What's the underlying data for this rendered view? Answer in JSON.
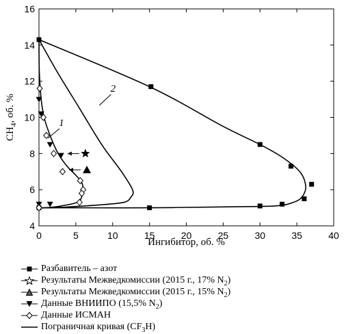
{
  "chart_data": {
    "type": "scatter",
    "xlabel": "Ингибитор, об. %",
    "ylabel_main": "CH",
    "ylabel_sub": "4",
    "ylabel_tail": ", об. %",
    "xlim": [
      0,
      40
    ],
    "ylim": [
      4,
      16
    ],
    "x_ticks": [
      "0",
      "5",
      "10",
      "15",
      "20",
      "25",
      "30",
      "35",
      "40"
    ],
    "y_ticks": [
      "4",
      "6",
      "8",
      "10",
      "12",
      "14",
      "16"
    ],
    "curve_labels": [
      {
        "text": "1",
        "x": 1.2,
        "y": 9.45
      },
      {
        "text": "2",
        "x": 8.2,
        "y": 11.35
      }
    ],
    "series": [
      {
        "name": "Разбавитель – азот",
        "marker": "square",
        "x": [
          0,
          15.2,
          30,
          34.2,
          37,
          36,
          33,
          30,
          15,
          0
        ],
        "y": [
          14.3,
          11.7,
          8.5,
          7.3,
          6.3,
          5.5,
          5.2,
          5.1,
          5.0,
          5.0
        ]
      },
      {
        "name_pre": "Результаты Межведкомиссии (2015 г., 17% N",
        "name_sub": "2",
        "name_post": ")",
        "marker": "star",
        "x": [
          6.3
        ],
        "y": [
          8.0
        ]
      },
      {
        "name_pre": "Результаты Межведкомиссии (2015 г., 15% N",
        "name_sub": "2",
        "name_post": ")",
        "marker": "triangle-up",
        "x": [
          6.5
        ],
        "y": [
          7.1
        ]
      },
      {
        "name_pre": "Данные ВНИИПО (15,5% N",
        "name_sub": "2",
        "name_post": ")",
        "marker": "triangle-down",
        "x": [
          0,
          0.3,
          1.5,
          3.0,
          1.5,
          0
        ],
        "y": [
          11.0,
          10.2,
          8.5,
          7.9,
          5.2,
          5.2
        ]
      },
      {
        "name": "Данные ИСМАН",
        "marker": "diamond",
        "x": [
          0.1,
          0.6,
          1.0,
          2.0,
          3.2,
          5.6,
          6.0,
          5.8,
          5.5,
          0
        ],
        "y": [
          11.6,
          10.0,
          9.0,
          8.0,
          7.0,
          6.5,
          6.0,
          5.8,
          5.3,
          5.0
        ]
      },
      {
        "name_pre": "Пограничная кривая (CF",
        "name_sub": "3",
        "name_post": "H)",
        "marker": "line"
      }
    ],
    "curve_1": {
      "x": [
        0,
        0.05,
        0.3,
        0.7,
        1.5,
        2.6,
        3.8,
        5.0,
        5.8,
        6.0,
        5.8,
        5.2,
        3.0,
        1.0,
        0
      ],
      "y": [
        14.3,
        12.5,
        11.0,
        10.0,
        9.0,
        8.0,
        7.3,
        6.8,
        6.4,
        6.0,
        5.6,
        5.3,
        5.1,
        5.0,
        5.0
      ]
    },
    "curve_2": {
      "x": [
        0,
        2.5,
        5.5,
        8.5,
        11.2,
        12.7,
        12.5,
        11.5,
        8.0,
        4.0,
        1.5,
        0
      ],
      "y": [
        14.3,
        12.5,
        10.5,
        8.5,
        7.0,
        6.0,
        5.6,
        5.3,
        5.15,
        5.05,
        5.0,
        5.0
      ]
    },
    "curve_3": {
      "x": [
        0,
        15,
        25,
        30,
        33,
        35.4,
        36.2,
        35.7,
        34.5,
        32,
        25,
        15,
        5,
        0
      ],
      "y": [
        14.3,
        11.7,
        9.5,
        8.5,
        7.8,
        7.0,
        6.2,
        5.6,
        5.3,
        5.1,
        5.05,
        5.0,
        5.0,
        5.0
      ]
    }
  }
}
